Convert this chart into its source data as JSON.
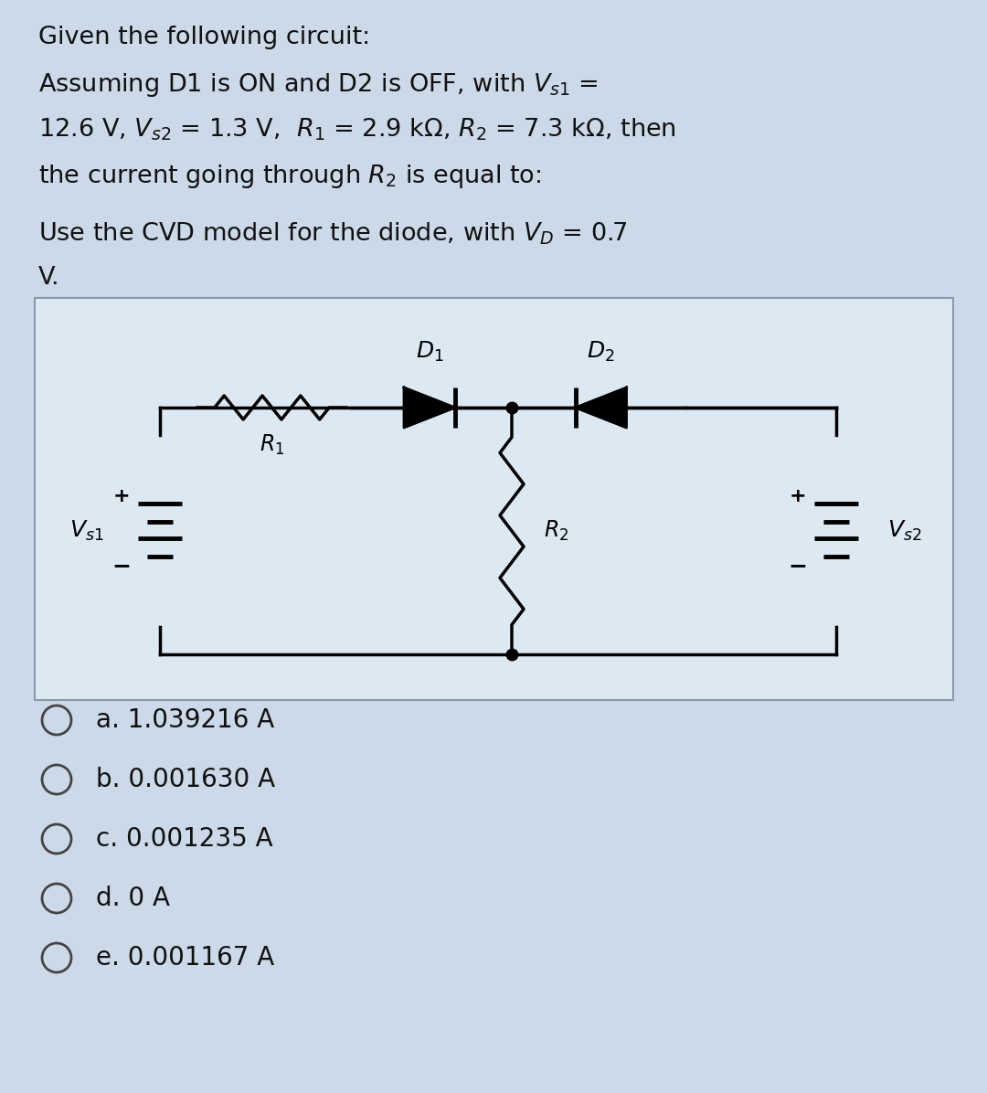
{
  "bg_color": "#ccd9e8",
  "circuit_bg": "#dce8f2",
  "text_color": "#111111",
  "circle_color": "#444444",
  "choices": [
    "a. 1.039216 A",
    "b. 0.001630 A",
    "c. 0.001235 A",
    "d. 0 A",
    "e. 0.001167 A"
  ],
  "font_size_body": 19.5,
  "font_size_choices": 20
}
